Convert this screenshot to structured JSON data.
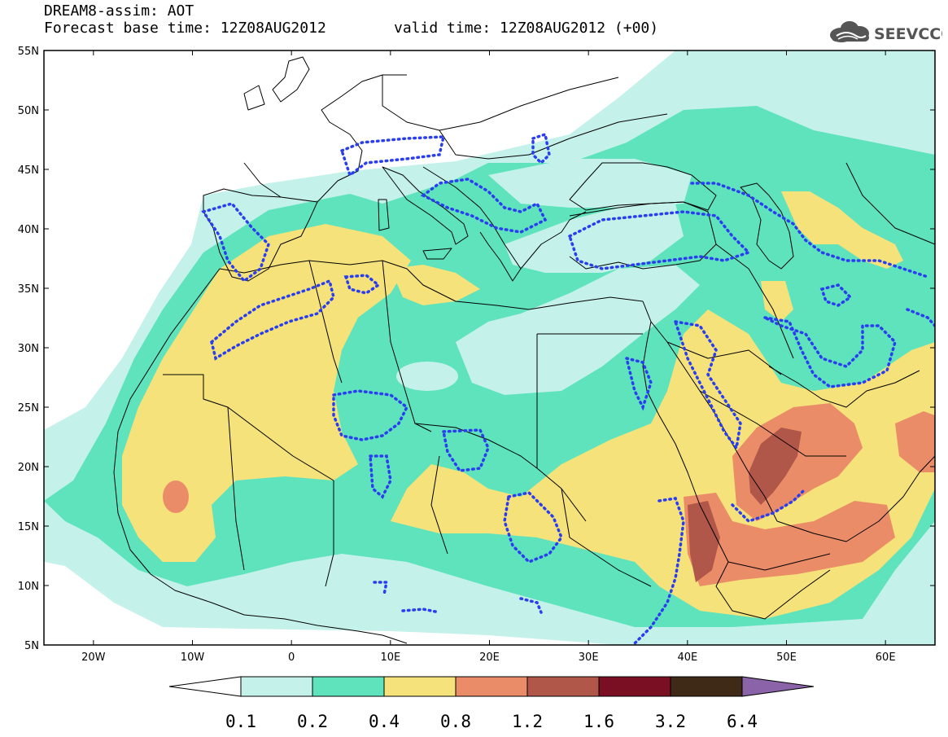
{
  "header": {
    "title": "DREAM8-assim: AOT",
    "forecast": "Forecast base time: 12Z08AUG2012",
    "valid": "valid time: 12Z08AUG2012 (+00)"
  },
  "logo": {
    "text": "SEEVCCC",
    "icon": "cloud-icon"
  },
  "map": {
    "lon_range": [
      -25,
      65
    ],
    "lat_range": [
      5,
      55
    ],
    "x_ticks": [
      {
        "value": -20,
        "label": "20W"
      },
      {
        "value": -10,
        "label": "10W"
      },
      {
        "value": 0,
        "label": "0"
      },
      {
        "value": 10,
        "label": "10E"
      },
      {
        "value": 20,
        "label": "20E"
      },
      {
        "value": 30,
        "label": "30E"
      },
      {
        "value": 40,
        "label": "40E"
      },
      {
        "value": 50,
        "label": "50E"
      },
      {
        "value": 60,
        "label": "60E"
      }
    ],
    "y_ticks": [
      {
        "value": 55,
        "label": "55N"
      },
      {
        "value": 50,
        "label": "50N"
      },
      {
        "value": 45,
        "label": "45N"
      },
      {
        "value": 40,
        "label": "40N"
      },
      {
        "value": 35,
        "label": "35N"
      },
      {
        "value": 30,
        "label": "30N"
      },
      {
        "value": 25,
        "label": "25N"
      },
      {
        "value": 20,
        "label": "20N"
      },
      {
        "value": 15,
        "label": "15N"
      },
      {
        "value": 10,
        "label": "10N"
      },
      {
        "value": 5,
        "label": "5N"
      }
    ]
  },
  "colorbar": {
    "labels": [
      "0.1",
      "0.2",
      "0.4",
      "0.8",
      "1.2",
      "1.6",
      "3.2",
      "6.4"
    ],
    "colors": [
      "#c4f2ea",
      "#5ee3bd",
      "#f5e27a",
      "#eb8c68",
      "#b15749",
      "#7a0f24",
      "#3e2a16"
    ],
    "under_color": "#ffffff",
    "over_color": "#8a63a8"
  }
}
